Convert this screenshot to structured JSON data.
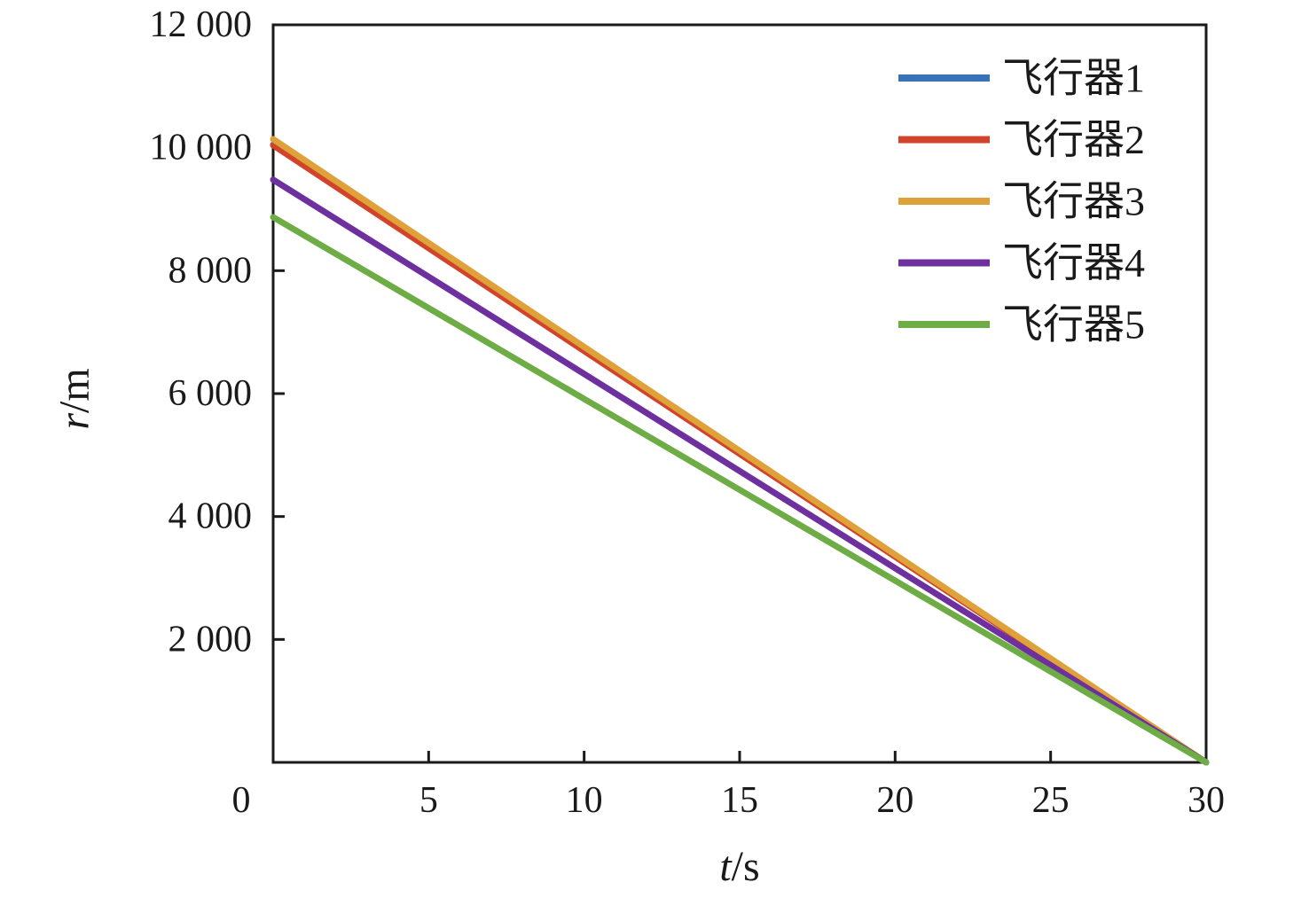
{
  "chart_data": {
    "type": "line",
    "title": "",
    "xlabel": "t/s",
    "xlabel_var": "t",
    "xlabel_unit": "/s",
    "ylabel": "r/m",
    "ylabel_var": "r",
    "ylabel_unit": "/m",
    "xlim": [
      0,
      30
    ],
    "ylim": [
      0,
      12000
    ],
    "grid": false,
    "legend_position": "top-right-inside",
    "axis_color": "#1a1a1a",
    "x_ticks": [
      0,
      5,
      10,
      15,
      20,
      25,
      30
    ],
    "x_tick_labels": [
      "0",
      "5",
      "10",
      "15",
      "20",
      "25",
      "30"
    ],
    "y_ticks": [
      2000,
      4000,
      6000,
      8000,
      10000,
      12000
    ],
    "y_tick_labels": [
      "2 000",
      "4 000",
      "6 000",
      "8 000",
      "10 000",
      "12 000"
    ],
    "series": [
      {
        "name": "飞行器1",
        "color": "#3A72B8",
        "x": [
          0,
          30
        ],
        "y": [
          10050,
          0
        ]
      },
      {
        "name": "飞行器2",
        "color": "#D1432A",
        "x": [
          0,
          30
        ],
        "y": [
          10040,
          0
        ]
      },
      {
        "name": "飞行器3",
        "color": "#DFA13A",
        "x": [
          0,
          30
        ],
        "y": [
          10140,
          0
        ]
      },
      {
        "name": "飞行器4",
        "color": "#6E2F9F",
        "x": [
          0,
          30
        ],
        "y": [
          9480,
          0
        ]
      },
      {
        "name": "飞行器5",
        "color": "#6EAC45",
        "x": [
          0,
          30
        ],
        "y": [
          8870,
          0
        ]
      }
    ]
  }
}
